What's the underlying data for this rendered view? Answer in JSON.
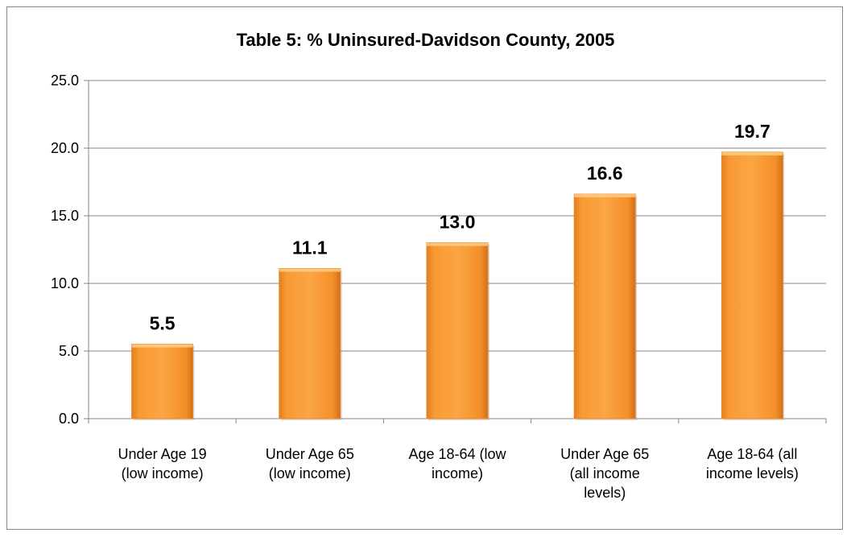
{
  "chart_data": {
    "type": "bar",
    "title": "Table 5:  % Uninsured-Davidson County, 2005",
    "categories": [
      [
        "Under Age 19",
        "(low income)"
      ],
      [
        "Under Age 65",
        "(low income)"
      ],
      [
        "Age 18-64 (low",
        "income)"
      ],
      [
        "Under Age 65",
        "(all income",
        "levels)"
      ],
      [
        "Age 18-64 (all",
        "income levels)"
      ]
    ],
    "values": [
      5.5,
      11.1,
      13.0,
      16.6,
      19.7
    ],
    "value_labels": [
      "5.5",
      "11.1",
      "13.0",
      "16.6",
      "19.7"
    ],
    "ylim": [
      0,
      25
    ],
    "yticks": [
      0,
      5,
      10,
      15,
      20,
      25
    ],
    "ytick_labels": [
      "0.0",
      "5.0",
      "10.0",
      "15.0",
      "20.0",
      "25.0"
    ],
    "grid": true,
    "legend": false,
    "colors": {
      "bar_light": "#FBB04A",
      "bar_mid": "#F79B2E",
      "bar_dark": "#D9741A",
      "grid": "#868686",
      "axis": "#868686"
    }
  }
}
